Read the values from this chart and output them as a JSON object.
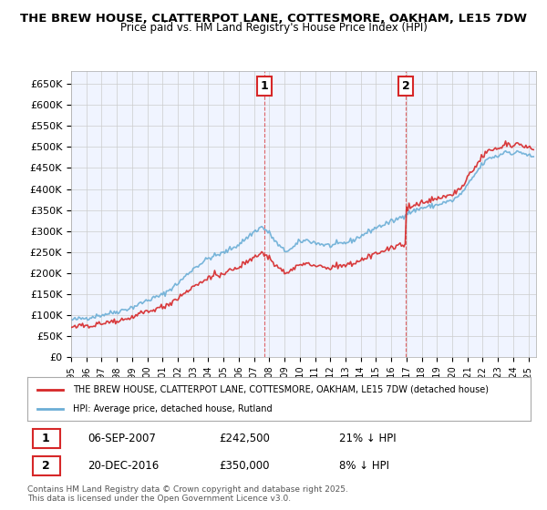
{
  "title_line1": "THE BREW HOUSE, CLATTERPOT LANE, COTTESMORE, OAKHAM, LE15 7DW",
  "title_line2": "Price paid vs. HM Land Registry's House Price Index (HPI)",
  "ylim": [
    0,
    680000
  ],
  "yticks": [
    0,
    50000,
    100000,
    150000,
    200000,
    250000,
    300000,
    350000,
    400000,
    450000,
    500000,
    550000,
    600000,
    650000
  ],
  "ytick_labels": [
    "£0",
    "£50K",
    "£100K",
    "£150K",
    "£200K",
    "£250K",
    "£300K",
    "£350K",
    "£400K",
    "£450K",
    "£500K",
    "£550K",
    "£600K",
    "£650K"
  ],
  "xlim_start": 1995.0,
  "xlim_end": 2025.5,
  "xtick_years": [
    1995,
    1996,
    1997,
    1998,
    1999,
    2000,
    2001,
    2002,
    2003,
    2004,
    2005,
    2006,
    2007,
    2008,
    2009,
    2010,
    2011,
    2012,
    2013,
    2014,
    2015,
    2016,
    2017,
    2018,
    2019,
    2020,
    2021,
    2022,
    2023,
    2024,
    2025
  ],
  "vline1_x": 2007.68,
  "vline2_x": 2016.97,
  "marker1_label": "1",
  "marker2_label": "2",
  "marker1_y": 660000,
  "marker2_y": 660000,
  "sale1_date": "06-SEP-2007",
  "sale1_price": "£242,500",
  "sale1_hpi": "21% ↓ HPI",
  "sale2_date": "20-DEC-2016",
  "sale2_price": "£350,000",
  "sale2_hpi": "8% ↓ HPI",
  "legend_line1": "THE BREW HOUSE, CLATTERPOT LANE, COTTESMORE, OAKHAM, LE15 7DW (detached house)",
  "legend_line2": "HPI: Average price, detached house, Rutland",
  "footer_line1": "Contains HM Land Registry data © Crown copyright and database right 2025.",
  "footer_line2": "This data is licensed under the Open Government Licence v3.0.",
  "hpi_color": "#6baed6",
  "price_color": "#d62728",
  "background_color": "#ffffff",
  "plot_bg_color": "#f0f4ff",
  "grid_color": "#cccccc"
}
